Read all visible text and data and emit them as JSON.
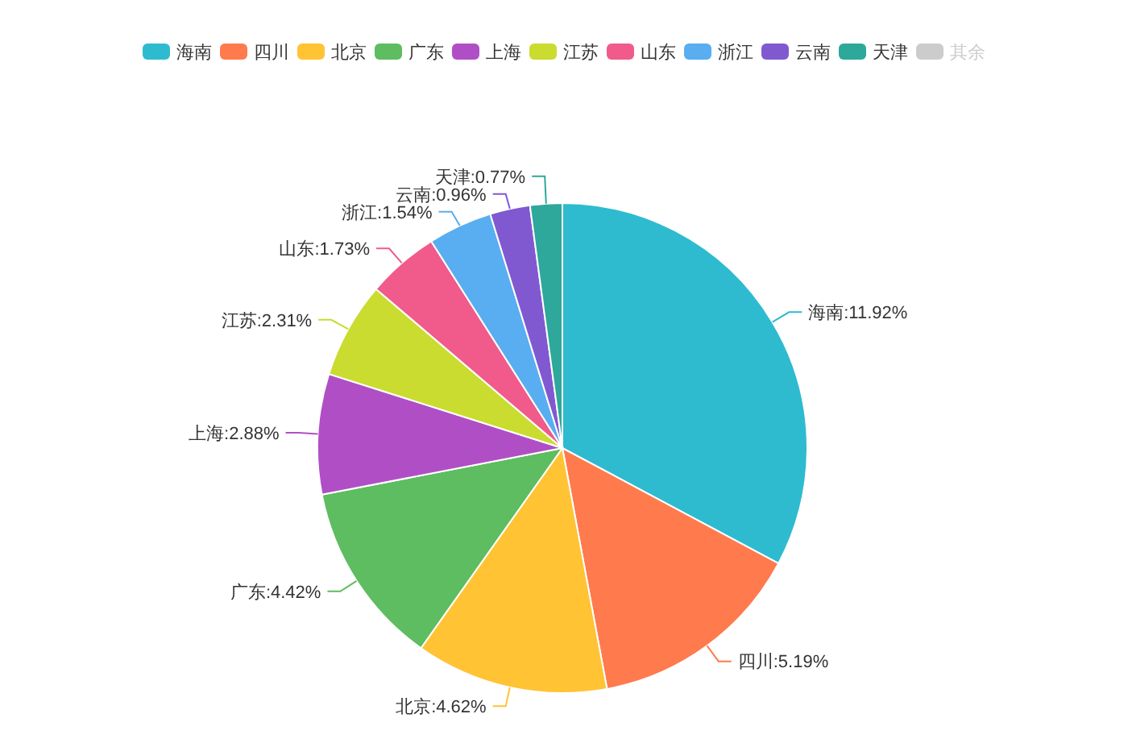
{
  "chart_data": {
    "type": "pie",
    "categories": [
      "海南",
      "四川",
      "北京",
      "广东",
      "上海",
      "江苏",
      "山东",
      "浙江",
      "云南",
      "天津",
      "其余"
    ],
    "values": [
      11.92,
      5.19,
      4.62,
      4.42,
      2.88,
      2.31,
      1.73,
      1.54,
      0.96,
      0.77,
      null
    ],
    "colors": [
      "#2ebbd0",
      "#ff7a4d",
      "#ffc334",
      "#5dbd60",
      "#b04fc5",
      "#c9dc2f",
      "#f05b8b",
      "#58aef0",
      "#8059d1",
      "#2ea89a",
      "#cccccc"
    ],
    "value_labels": [
      "海南:11.92%",
      "四川:5.19%",
      "北京:4.62%",
      "广东:4.42%",
      "上海:2.88%",
      "江苏:2.31%",
      "山东:1.73%",
      "浙江:1.54%",
      "云南:0.96%",
      "天津:0.77%",
      null
    ],
    "legend": "top"
  }
}
